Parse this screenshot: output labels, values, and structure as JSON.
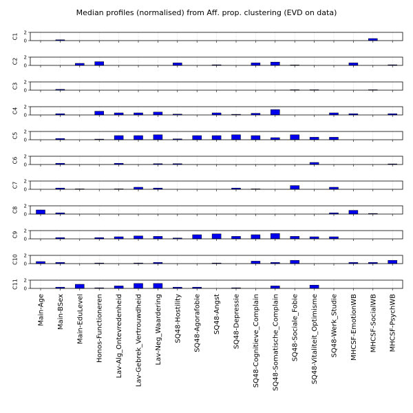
{
  "chart_data": {
    "type": "bar",
    "title": "Median profiles (normalised) from Aff. prop. clustering (EVD on data)",
    "categories": [
      "Main-Age",
      "Main-BSex",
      "Main-EduLevel",
      "Honos-Functioneren",
      "Lav-Alg_Ontevredenheid",
      "Lav-Gebrek_Vertrouwdheid",
      "Lav-Neg_Waardering",
      "SQ48-Hostility",
      "SQ48-Agorafobie",
      "SQ48-Angst",
      "SQ48-Depressie",
      "SQ48-Cognitieve_Complain",
      "SQ48-Somatische_Complain",
      "SQ48-Sociale_Fobie",
      "SQ48-Vitaliteit_Optimisme",
      "SQ48-Werk_Studie",
      "MHCSF-EmotionWB",
      "MHCSF-SocialWB",
      "MHCSF-PsychWB"
    ],
    "ylim": [
      0,
      2
    ],
    "yticks": [
      "2",
      "0"
    ],
    "series": [
      {
        "name": "C1",
        "values": [
          0,
          0.2,
          0,
          0,
          0,
          0,
          0,
          0,
          0,
          0,
          0,
          0,
          0,
          0,
          0,
          0,
          0,
          0.5,
          0
        ]
      },
      {
        "name": "C2",
        "values": [
          0,
          0,
          0.5,
          0.9,
          0,
          0,
          0,
          0.6,
          0,
          0.15,
          0,
          0.6,
          0.8,
          0.1,
          0,
          0,
          0.6,
          0,
          0.15
        ]
      },
      {
        "name": "C3",
        "values": [
          0,
          0.2,
          0,
          0,
          0,
          0,
          0,
          0,
          0,
          0,
          0,
          0,
          0,
          0.1,
          0.1,
          0,
          0,
          0.1,
          0
        ]
      },
      {
        "name": "C4",
        "values": [
          0,
          0.3,
          0,
          0.9,
          0.5,
          0.5,
          0.7,
          0.2,
          0,
          0.5,
          0.15,
          0.4,
          1.3,
          0,
          0,
          0.5,
          0.3,
          0,
          0.3
        ]
      },
      {
        "name": "C5",
        "values": [
          0,
          0.3,
          0,
          0.15,
          1.0,
          1.0,
          1.2,
          0.2,
          1.0,
          1.0,
          1.2,
          1.0,
          0.5,
          1.2,
          0.6,
          0.6,
          0,
          0,
          0
        ]
      },
      {
        "name": "C6",
        "values": [
          0,
          0.3,
          0,
          0,
          0.3,
          0,
          0.2,
          0.2,
          0,
          0,
          0,
          0,
          0,
          0,
          0.5,
          0,
          0,
          0,
          0.15
        ]
      },
      {
        "name": "C7",
        "values": [
          0,
          0.3,
          0.1,
          0,
          0.1,
          0.5,
          0.3,
          0,
          0,
          0,
          0.3,
          0.1,
          0,
          0.9,
          0,
          0.5,
          0,
          0,
          0
        ]
      },
      {
        "name": "C8",
        "values": [
          1.0,
          0.3,
          0,
          0,
          0,
          0,
          0,
          0,
          0,
          0,
          0,
          0,
          0,
          0,
          0,
          0.3,
          0.9,
          0.15,
          0
        ]
      },
      {
        "name": "C9",
        "values": [
          0,
          0.3,
          0,
          0.3,
          0.5,
          0.7,
          0.6,
          0.2,
          1.0,
          1.2,
          0.6,
          1.0,
          1.3,
          0.6,
          0.5,
          0.5,
          0,
          0,
          0
        ]
      },
      {
        "name": "C10",
        "values": [
          0.5,
          0.3,
          0,
          0.15,
          0,
          0.15,
          0.3,
          0,
          0,
          0.15,
          0,
          0.6,
          0.3,
          0.8,
          0,
          0,
          0.3,
          0.3,
          0.8
        ]
      },
      {
        "name": "C11",
        "values": [
          0,
          0.3,
          1.0,
          0.15,
          0.6,
          1.2,
          1.2,
          0.3,
          0.3,
          0,
          0.15,
          0,
          0.6,
          0,
          0.8,
          0,
          0,
          0,
          0
        ]
      }
    ]
  }
}
